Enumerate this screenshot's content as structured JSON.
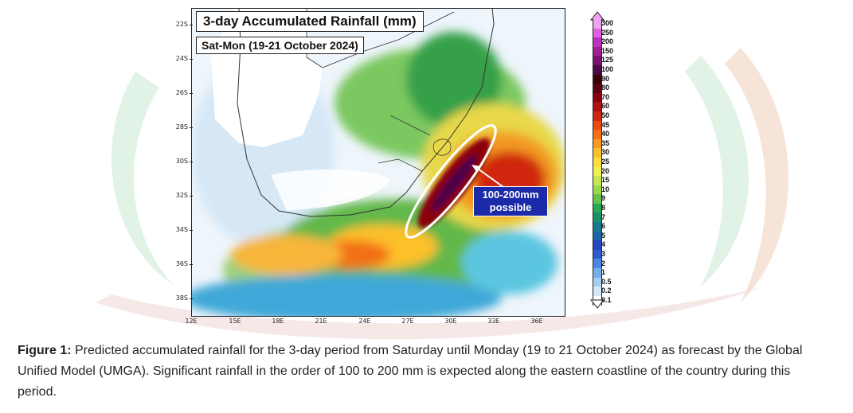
{
  "map": {
    "title": "3-day Accumulated Rainfall (mm)",
    "subtitle": "Sat-Mon (19-21 October 2024)",
    "annotation_line1": "100-200mm",
    "annotation_line2": "possible",
    "lat_ticks": [
      "22S",
      "24S",
      "26S",
      "28S",
      "30S",
      "32S",
      "34S",
      "36S",
      "38S"
    ],
    "lon_ticks": [
      "12E",
      "15E",
      "18E",
      "21E",
      "24E",
      "27E",
      "30E",
      "33E",
      "36E"
    ]
  },
  "legend": {
    "labels": [
      "300",
      "250",
      "200",
      "150",
      "125",
      "100",
      "90",
      "80",
      "70",
      "60",
      "50",
      "45",
      "40",
      "35",
      "30",
      "25",
      "20",
      "15",
      "10",
      "9",
      "8",
      "7",
      "6",
      "5",
      "4",
      "3",
      "2",
      "1",
      "0.5",
      "0.2",
      "0.1"
    ],
    "colors": [
      "#f0a0f0",
      "#e060e0",
      "#c030c0",
      "#a02090",
      "#7a0f70",
      "#50064a",
      "#3a0008",
      "#5a0010",
      "#8a0010",
      "#b01010",
      "#d02810",
      "#e84a10",
      "#f27018",
      "#f89a20",
      "#fcc02a",
      "#fde040",
      "#f2f050",
      "#c8e850",
      "#9ad84a",
      "#62c24a",
      "#2aa850",
      "#1a9068",
      "#167a88",
      "#1a64a8",
      "#2448c0",
      "#2e5ad2",
      "#4a86e2",
      "#74aee8",
      "#a4cef0",
      "#d2e8f8",
      "#ffffff"
    ]
  },
  "caption": {
    "label": "Figure 1:",
    "text": " Predicted accumulated rainfall for the 3-day period from Saturday until Monday (19 to 21 October 2024) as forecast by the Global Unified Model (UMGA). Significant rainfall in the order of 100 to 200 mm is expected along the eastern coastline of the country during this period."
  }
}
